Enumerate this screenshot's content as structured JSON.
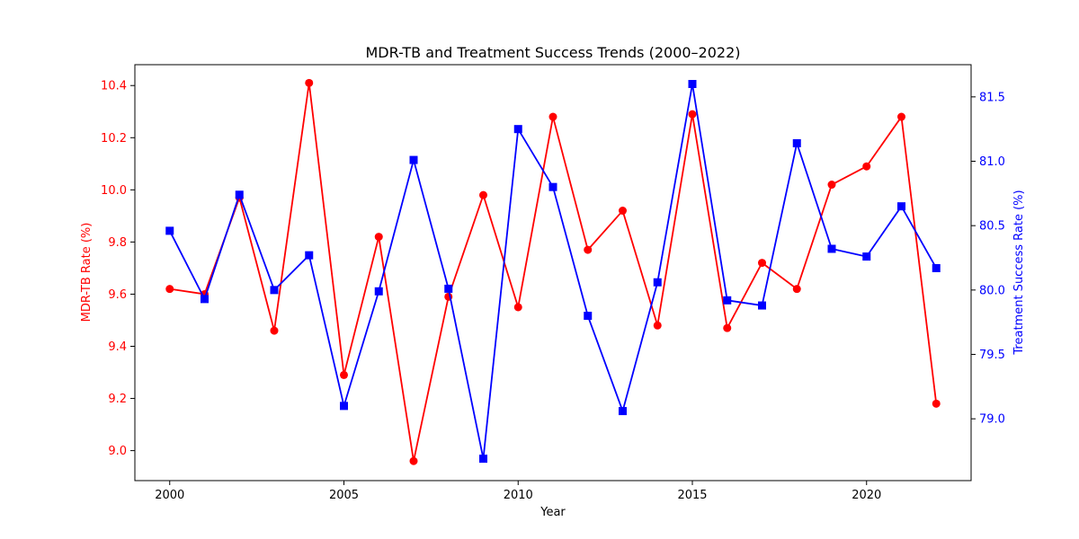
{
  "chart_data": {
    "type": "line",
    "title": "MDR-TB and Treatment Success Trends (2000–2022)",
    "xlabel": "Year",
    "x": [
      2000,
      2001,
      2002,
      2003,
      2004,
      2005,
      2006,
      2007,
      2008,
      2009,
      2010,
      2011,
      2012,
      2013,
      2014,
      2015,
      2016,
      2017,
      2018,
      2019,
      2020,
      2021,
      2022
    ],
    "xlim": [
      1999.0,
      2023.0
    ],
    "xticks": [
      "2000",
      "2005",
      "2010",
      "2015",
      "2020"
    ],
    "grid": false,
    "legend": false,
    "series": [
      {
        "axis": "left",
        "color": "#ff0000",
        "marker": "circle",
        "values": [
          9.62,
          9.6,
          9.97,
          9.46,
          10.41,
          9.29,
          9.82,
          8.96,
          9.59,
          9.98,
          9.55,
          10.28,
          9.77,
          9.92,
          9.48,
          10.29,
          9.47,
          9.72,
          9.62,
          10.02,
          10.09,
          10.28,
          9.18
        ]
      },
      {
        "axis": "right",
        "color": "#0000ff",
        "marker": "square",
        "values": [
          80.46,
          79.93,
          80.74,
          80.0,
          80.27,
          79.1,
          79.99,
          81.01,
          80.01,
          78.69,
          81.25,
          80.8,
          79.8,
          79.06,
          80.06,
          81.6,
          79.92,
          79.88,
          81.14,
          80.32,
          80.26,
          80.65,
          80.17
        ]
      }
    ],
    "y_left": {
      "label": "MDR-TB Rate (%)",
      "color": "#ff0000",
      "ylim": [
        8.885,
        10.48
      ],
      "ticks": [
        "9.0",
        "9.2",
        "9.4",
        "9.6",
        "9.8",
        "10.0",
        "10.2",
        "10.4"
      ]
    },
    "y_right": {
      "label": "Treatment Success Rate (%)",
      "color": "#0000ff",
      "ylim": [
        78.52,
        81.75
      ],
      "ticks": [
        "79.0",
        "79.5",
        "80.0",
        "80.5",
        "81.0",
        "81.5"
      ]
    }
  }
}
